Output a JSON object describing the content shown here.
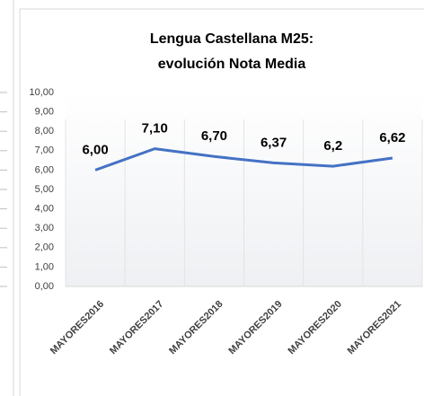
{
  "chart_data": {
    "type": "line",
    "title": "Lengua Castellana M25:",
    "subtitle": "evolución Nota Media",
    "categories": [
      "MAYORES2016",
      "MAYORES2017",
      "MAYORES2018",
      "MAYORES2019",
      "MAYORES2020",
      "MAYORES2021"
    ],
    "series": [
      {
        "name": "Nota Media",
        "color": "#4472c4",
        "values": [
          6.0,
          7.1,
          6.7,
          6.37,
          6.2,
          6.62
        ],
        "value_labels": [
          "6,00",
          "7,10",
          "6,70",
          "6,37",
          "6,2",
          "6,62"
        ]
      }
    ],
    "ylim": [
      0,
      10
    ],
    "yticks": [
      {
        "value": 0,
        "label": "0,00"
      },
      {
        "value": 1,
        "label": "1,00"
      },
      {
        "value": 2,
        "label": "2,00"
      },
      {
        "value": 3,
        "label": "3,00"
      },
      {
        "value": 4,
        "label": "4,00"
      },
      {
        "value": 5,
        "label": "5,00"
      },
      {
        "value": 6,
        "label": "6,00"
      },
      {
        "value": 7,
        "label": "7,00"
      },
      {
        "value": 8,
        "label": "8,00"
      },
      {
        "value": 9,
        "label": "9,00"
      },
      {
        "value": 10,
        "label": "10,00"
      }
    ],
    "grid": true
  }
}
